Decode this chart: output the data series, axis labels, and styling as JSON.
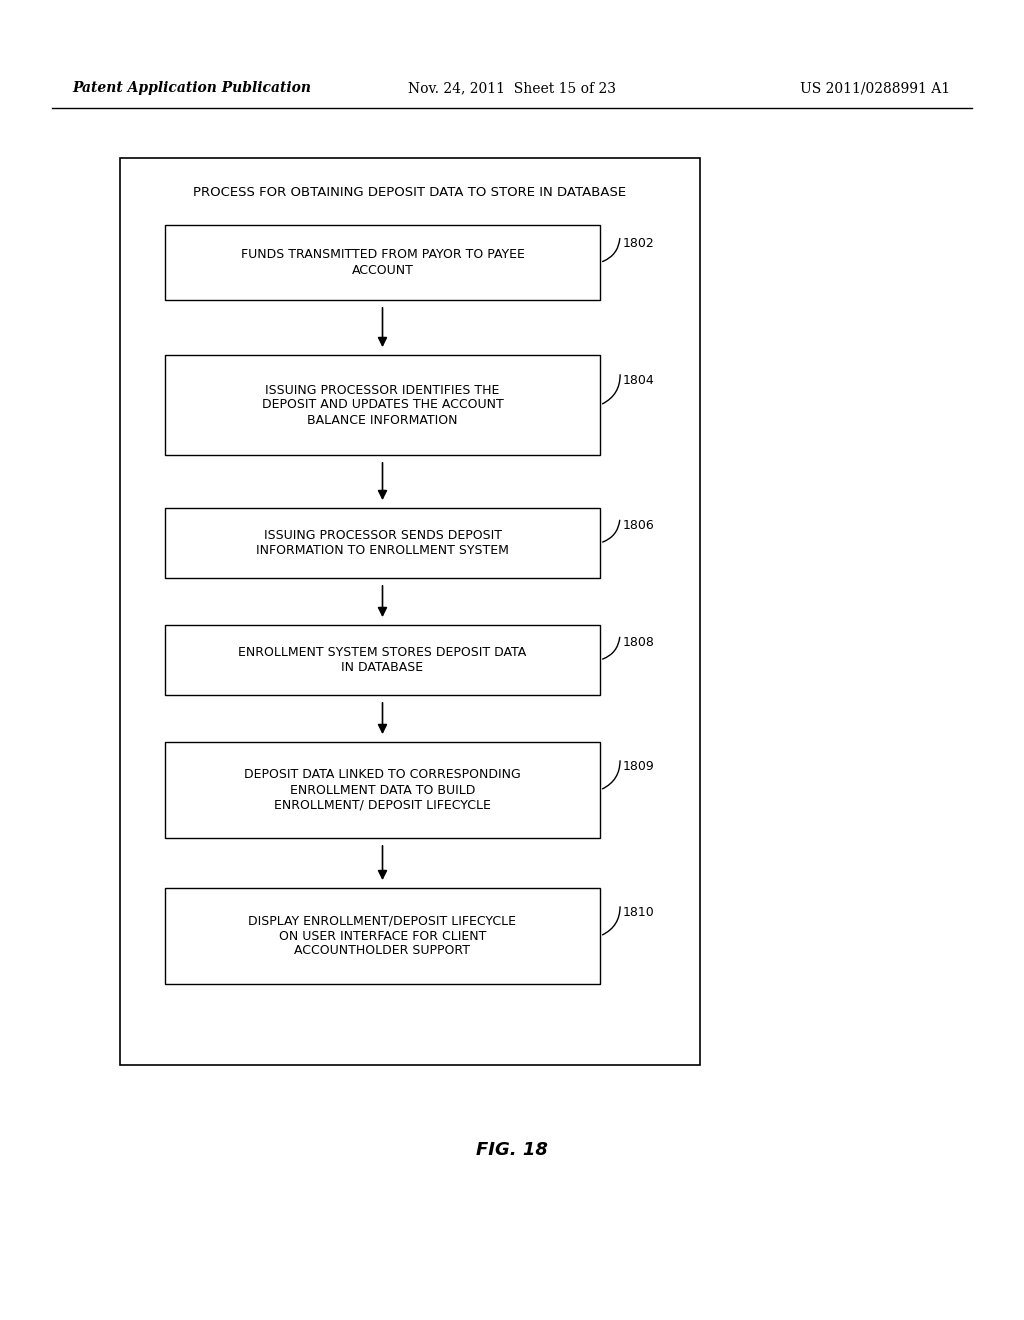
{
  "header_left": "Patent Application Publication",
  "header_mid": "Nov. 24, 2011  Sheet 15 of 23",
  "header_right": "US 2011/0288991 A1",
  "fig_label": "FIG. 18",
  "outer_title": "PROCESS FOR OBTAINING DEPOSIT DATA TO STORE IN DATABASE",
  "boxes": [
    {
      "label": "FUNDS TRANSMITTED FROM PAYOR TO PAYEE\nACCOUNT",
      "ref": "1802"
    },
    {
      "label": "ISSUING PROCESSOR IDENTIFIES THE\nDEPOSIT AND UPDATES THE ACCOUNT\nBALANCE INFORMATION",
      "ref": "1804"
    },
    {
      "label": "ISSUING PROCESSOR SENDS DEPOSIT\nINFORMATION TO ENROLLMENT SYSTEM",
      "ref": "1806"
    },
    {
      "label": "ENROLLMENT SYSTEM STORES DEPOSIT DATA\nIN DATABASE",
      "ref": "1808"
    },
    {
      "label": "DEPOSIT DATA LINKED TO CORRESPONDING\nENROLLMENT DATA TO BUILD\nENROLLMENT/ DEPOSIT LIFECYCLE",
      "ref": "1809"
    },
    {
      "label": "DISPLAY ENROLLMENT/DEPOSIT LIFECYCLE\nON USER INTERFACE FOR CLIENT\nACCOUNTHOLDER SUPPORT",
      "ref": "1810"
    }
  ],
  "bg_color": "#ffffff",
  "box_edge_color": "#000000",
  "box_face_color": "#ffffff",
  "text_color": "#000000",
  "arrow_color": "#000000",
  "outer_box_color": "#000000"
}
